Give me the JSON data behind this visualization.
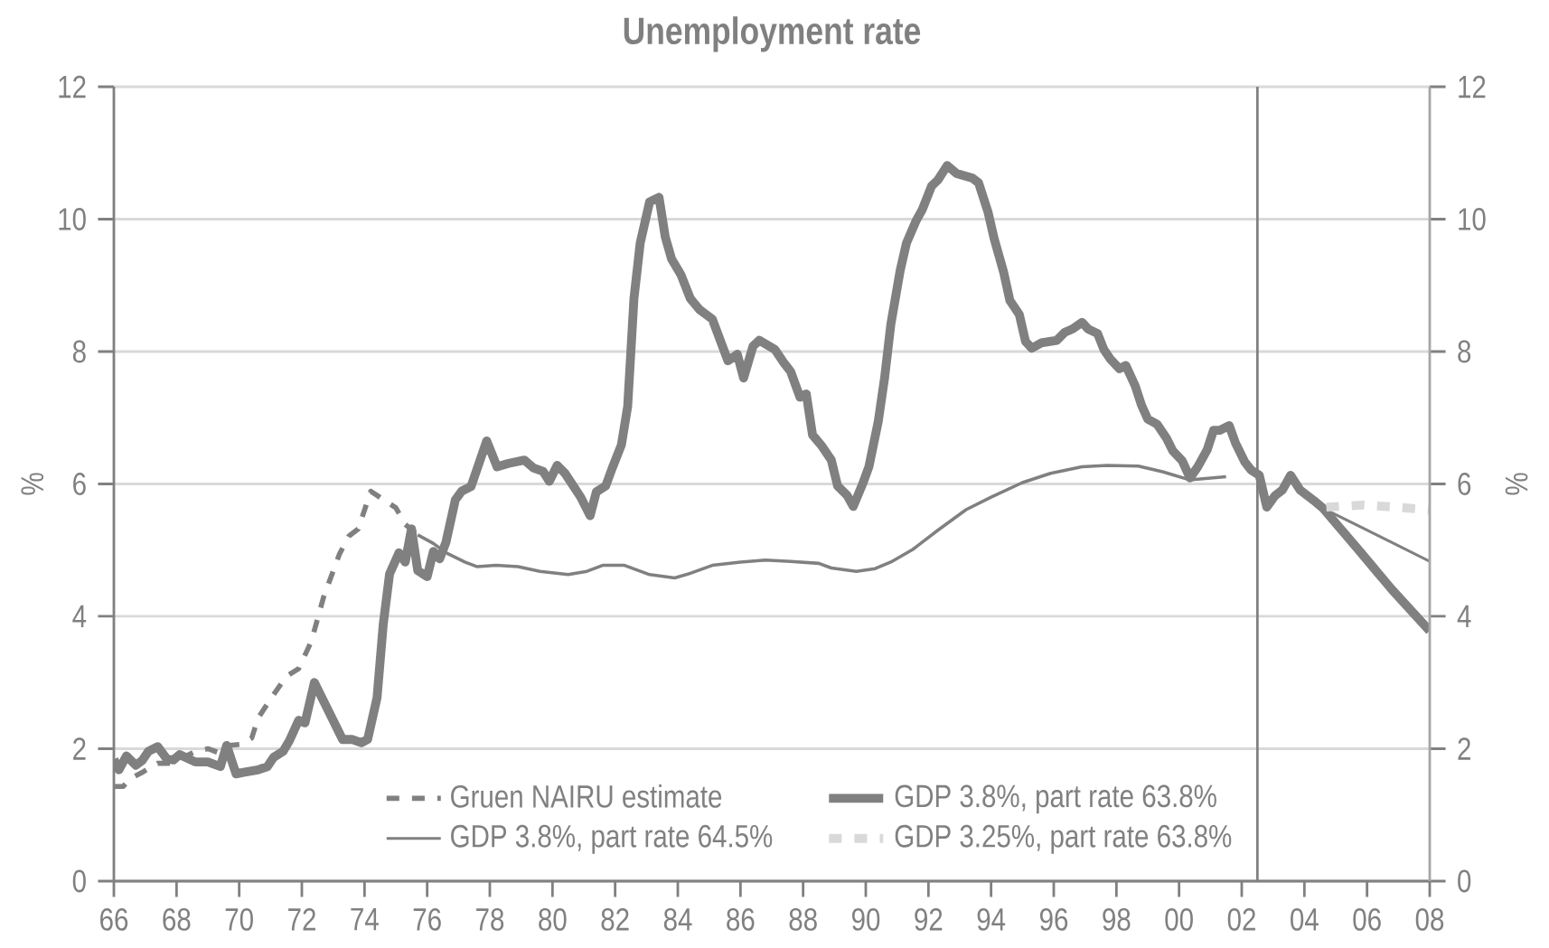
{
  "chart_data": {
    "type": "line",
    "title": "Unemployment rate",
    "ylabel": "%",
    "y2label": "%",
    "xlim": [
      1966,
      2008
    ],
    "xticks": [
      {
        "value": 1966,
        "label": "66"
      },
      {
        "value": 1968,
        "label": "68"
      },
      {
        "value": 1970,
        "label": "70"
      },
      {
        "value": 1972,
        "label": "72"
      },
      {
        "value": 1974,
        "label": "74"
      },
      {
        "value": 1976,
        "label": "76"
      },
      {
        "value": 1978,
        "label": "78"
      },
      {
        "value": 1980,
        "label": "80"
      },
      {
        "value": 1982,
        "label": "82"
      },
      {
        "value": 1984,
        "label": "84"
      },
      {
        "value": 1986,
        "label": "86"
      },
      {
        "value": 1988,
        "label": "88"
      },
      {
        "value": 1990,
        "label": "90"
      },
      {
        "value": 1992,
        "label": "92"
      },
      {
        "value": 1994,
        "label": "94"
      },
      {
        "value": 1996,
        "label": "96"
      },
      {
        "value": 1998,
        "label": "98"
      },
      {
        "value": 2000,
        "label": "00"
      },
      {
        "value": 2002,
        "label": "02"
      },
      {
        "value": 2004,
        "label": "04"
      },
      {
        "value": 2006,
        "label": "06"
      },
      {
        "value": 2008,
        "label": "08"
      }
    ],
    "ylim": [
      0,
      12
    ],
    "yticks": [
      0,
      2,
      4,
      6,
      8,
      10,
      12
    ],
    "y2lim": [
      0,
      12
    ],
    "y2ticks": [
      0,
      2,
      4,
      6,
      8,
      10,
      12
    ],
    "grid": "y",
    "legend": "bottom",
    "ref_lines": [
      {
        "axis": "x",
        "value": 2002.5,
        "color": "#808080"
      }
    ],
    "series": [
      {
        "name": "Gruen NAIRU estimate",
        "color": "#808080",
        "line_style": "dashed",
        "x": [
          1966.0,
          1966.3,
          1966.5,
          1966.9,
          1967.2,
          1967.4,
          1967.8,
          1968.1,
          1968.6,
          1969.0,
          1969.4,
          1969.7,
          1970.1,
          1970.4,
          1970.6,
          1971.0,
          1971.5,
          1971.9,
          1972.3,
          1972.7,
          1973.2,
          1973.5,
          1973.8,
          1974.2,
          1975.0,
          1975.3,
          1975.7
        ],
        "values": [
          1.43,
          1.43,
          1.54,
          1.64,
          1.73,
          1.78,
          1.78,
          1.84,
          1.96,
          2.0,
          1.93,
          2.05,
          2.07,
          2.16,
          2.46,
          2.75,
          3.09,
          3.21,
          3.62,
          4.3,
          4.94,
          5.21,
          5.32,
          5.89,
          5.64,
          5.39,
          5.23
        ]
      },
      {
        "color": "#808080",
        "line_style": "solid",
        "x": [
          1975.7,
          1976.2,
          1976.6,
          1977.2,
          1977.6,
          1978.2,
          1978.9,
          1979.6,
          1980.5,
          1981.1,
          1981.6,
          1982.3,
          1983.1,
          1983.9,
          1984.4,
          1985.1,
          1986.0,
          1986.8,
          1987.6,
          1988.5,
          1988.9,
          1989.7,
          1990.3,
          1990.8,
          1991.5,
          1992.3,
          1993.2,
          1994.0,
          1995.0,
          1995.9,
          1996.9,
          1997.7,
          1998.7,
          1999.5,
          2000.35,
          2001.5
        ],
        "values": [
          5.23,
          5.1,
          4.96,
          4.82,
          4.75,
          4.77,
          4.75,
          4.68,
          4.63,
          4.68,
          4.77,
          4.77,
          4.63,
          4.58,
          4.65,
          4.77,
          4.82,
          4.85,
          4.83,
          4.8,
          4.73,
          4.68,
          4.72,
          4.82,
          5.01,
          5.3,
          5.61,
          5.8,
          6.02,
          6.16,
          6.26,
          6.28,
          6.27,
          6.18,
          6.06,
          6.11
        ]
      },
      {
        "name": "GDP 3.8%, part rate 63.8%",
        "color": "#808080",
        "line_style": "solid",
        "x": [
          1966.0,
          1966.16,
          1966.4,
          1966.7,
          1966.9,
          1967.1,
          1967.4,
          1967.7,
          1967.9,
          1968.1,
          1968.6,
          1969.0,
          1969.4,
          1969.6,
          1969.9,
          1970.1,
          1970.6,
          1970.9,
          1971.1,
          1971.4,
          1971.6,
          1971.9,
          1972.1,
          1972.4,
          1973.3,
          1973.6,
          1973.9,
          1974.1,
          1974.4,
          1974.6,
          1974.8,
          1975.1,
          1975.3,
          1975.5,
          1975.7,
          1976.0,
          1976.2,
          1976.4,
          1976.6,
          1976.9,
          1977.1,
          1977.4,
          1977.9,
          1978.23,
          1978.6,
          1979.1,
          1979.4,
          1979.7,
          1979.9,
          1980.15,
          1980.4,
          1980.9,
          1981.2,
          1981.4,
          1981.7,
          1981.9,
          1982.2,
          1982.4,
          1982.6,
          1982.8,
          1983.1,
          1983.4,
          1983.6,
          1983.8,
          1984.1,
          1984.4,
          1984.7,
          1985.1,
          1985.6,
          1985.9,
          1986.1,
          1986.4,
          1986.6,
          1987.1,
          1987.4,
          1987.6,
          1987.9,
          1988.1,
          1988.3,
          1988.6,
          1988.9,
          1989.1,
          1989.4,
          1989.6,
          1989.9,
          1990.1,
          1990.4,
          1990.6,
          1990.8,
          1991.1,
          1991.3,
          1991.6,
          1991.8,
          1992.1,
          1992.3,
          1992.6,
          1992.9,
          1993.4,
          1993.6,
          1993.9,
          1994.1,
          1994.4,
          1994.6,
          1994.9,
          1995.1,
          1995.3,
          1995.6,
          1996.1,
          1996.35,
          1996.6,
          1996.9,
          1997.1,
          1997.4,
          1997.6,
          1997.8,
          1998.1,
          1998.3,
          1998.6,
          1998.8,
          1999.0,
          1999.3,
          1999.6,
          1999.8,
          2000.1,
          2000.35,
          2000.6,
          2000.9,
          2001.1,
          2001.3,
          2001.6,
          2001.8,
          2002.1,
          2002.3,
          2002.56,
          2002.8,
          2003.06,
          2003.3,
          2003.56,
          2003.86,
          2004.3,
          2004.6,
          2005.7,
          2006.8,
          2008.0
        ],
        "values": [
          1.84,
          1.68,
          1.89,
          1.75,
          1.82,
          1.96,
          2.03,
          1.84,
          1.83,
          1.91,
          1.8,
          1.8,
          1.73,
          2.05,
          1.62,
          1.64,
          1.68,
          1.73,
          1.87,
          1.96,
          2.12,
          2.43,
          2.39,
          3.0,
          2.14,
          2.14,
          2.09,
          2.14,
          2.77,
          3.89,
          4.64,
          4.96,
          4.82,
          5.32,
          4.69,
          4.6,
          4.98,
          4.87,
          5.12,
          5.76,
          5.89,
          5.96,
          6.65,
          6.26,
          6.31,
          6.36,
          6.24,
          6.19,
          6.04,
          6.28,
          6.16,
          5.8,
          5.52,
          5.88,
          5.97,
          6.23,
          6.59,
          7.17,
          8.8,
          9.64,
          10.26,
          10.33,
          9.73,
          9.4,
          9.16,
          8.8,
          8.63,
          8.49,
          7.86,
          7.96,
          7.6,
          8.08,
          8.17,
          8.03,
          7.82,
          7.7,
          7.31,
          7.36,
          6.74,
          6.57,
          6.36,
          5.97,
          5.83,
          5.66,
          6.0,
          6.26,
          6.95,
          7.6,
          8.41,
          9.23,
          9.64,
          9.97,
          10.14,
          10.5,
          10.59,
          10.81,
          10.69,
          10.62,
          10.55,
          10.11,
          9.7,
          9.2,
          8.77,
          8.56,
          8.15,
          8.05,
          8.13,
          8.17,
          8.29,
          8.34,
          8.44,
          8.34,
          8.27,
          8.03,
          7.89,
          7.74,
          7.79,
          7.48,
          7.19,
          6.98,
          6.9,
          6.69,
          6.5,
          6.35,
          6.09,
          6.26,
          6.52,
          6.81,
          6.81,
          6.88,
          6.62,
          6.33,
          6.21,
          6.13,
          5.65,
          5.82,
          5.91,
          6.13,
          5.91,
          5.75,
          5.63,
          5.02,
          4.4,
          3.78
        ]
      },
      {
        "name": "GDP 3.8%,  part rate 64.5%",
        "color": "#808080",
        "line_style": "solid",
        "x": [
          2004.6,
          2005.8,
          2006.9,
          2008.0
        ],
        "values": [
          5.63,
          5.35,
          5.09,
          4.83
        ]
      },
      {
        "name": "GDP 3.25%, part rate 63.8%",
        "color": "#d9d9d9",
        "line_style": "dashed",
        "x": [
          2004.7,
          2005.9,
          2006.9,
          2008.0
        ],
        "values": [
          5.65,
          5.68,
          5.65,
          5.61
        ]
      }
    ]
  }
}
